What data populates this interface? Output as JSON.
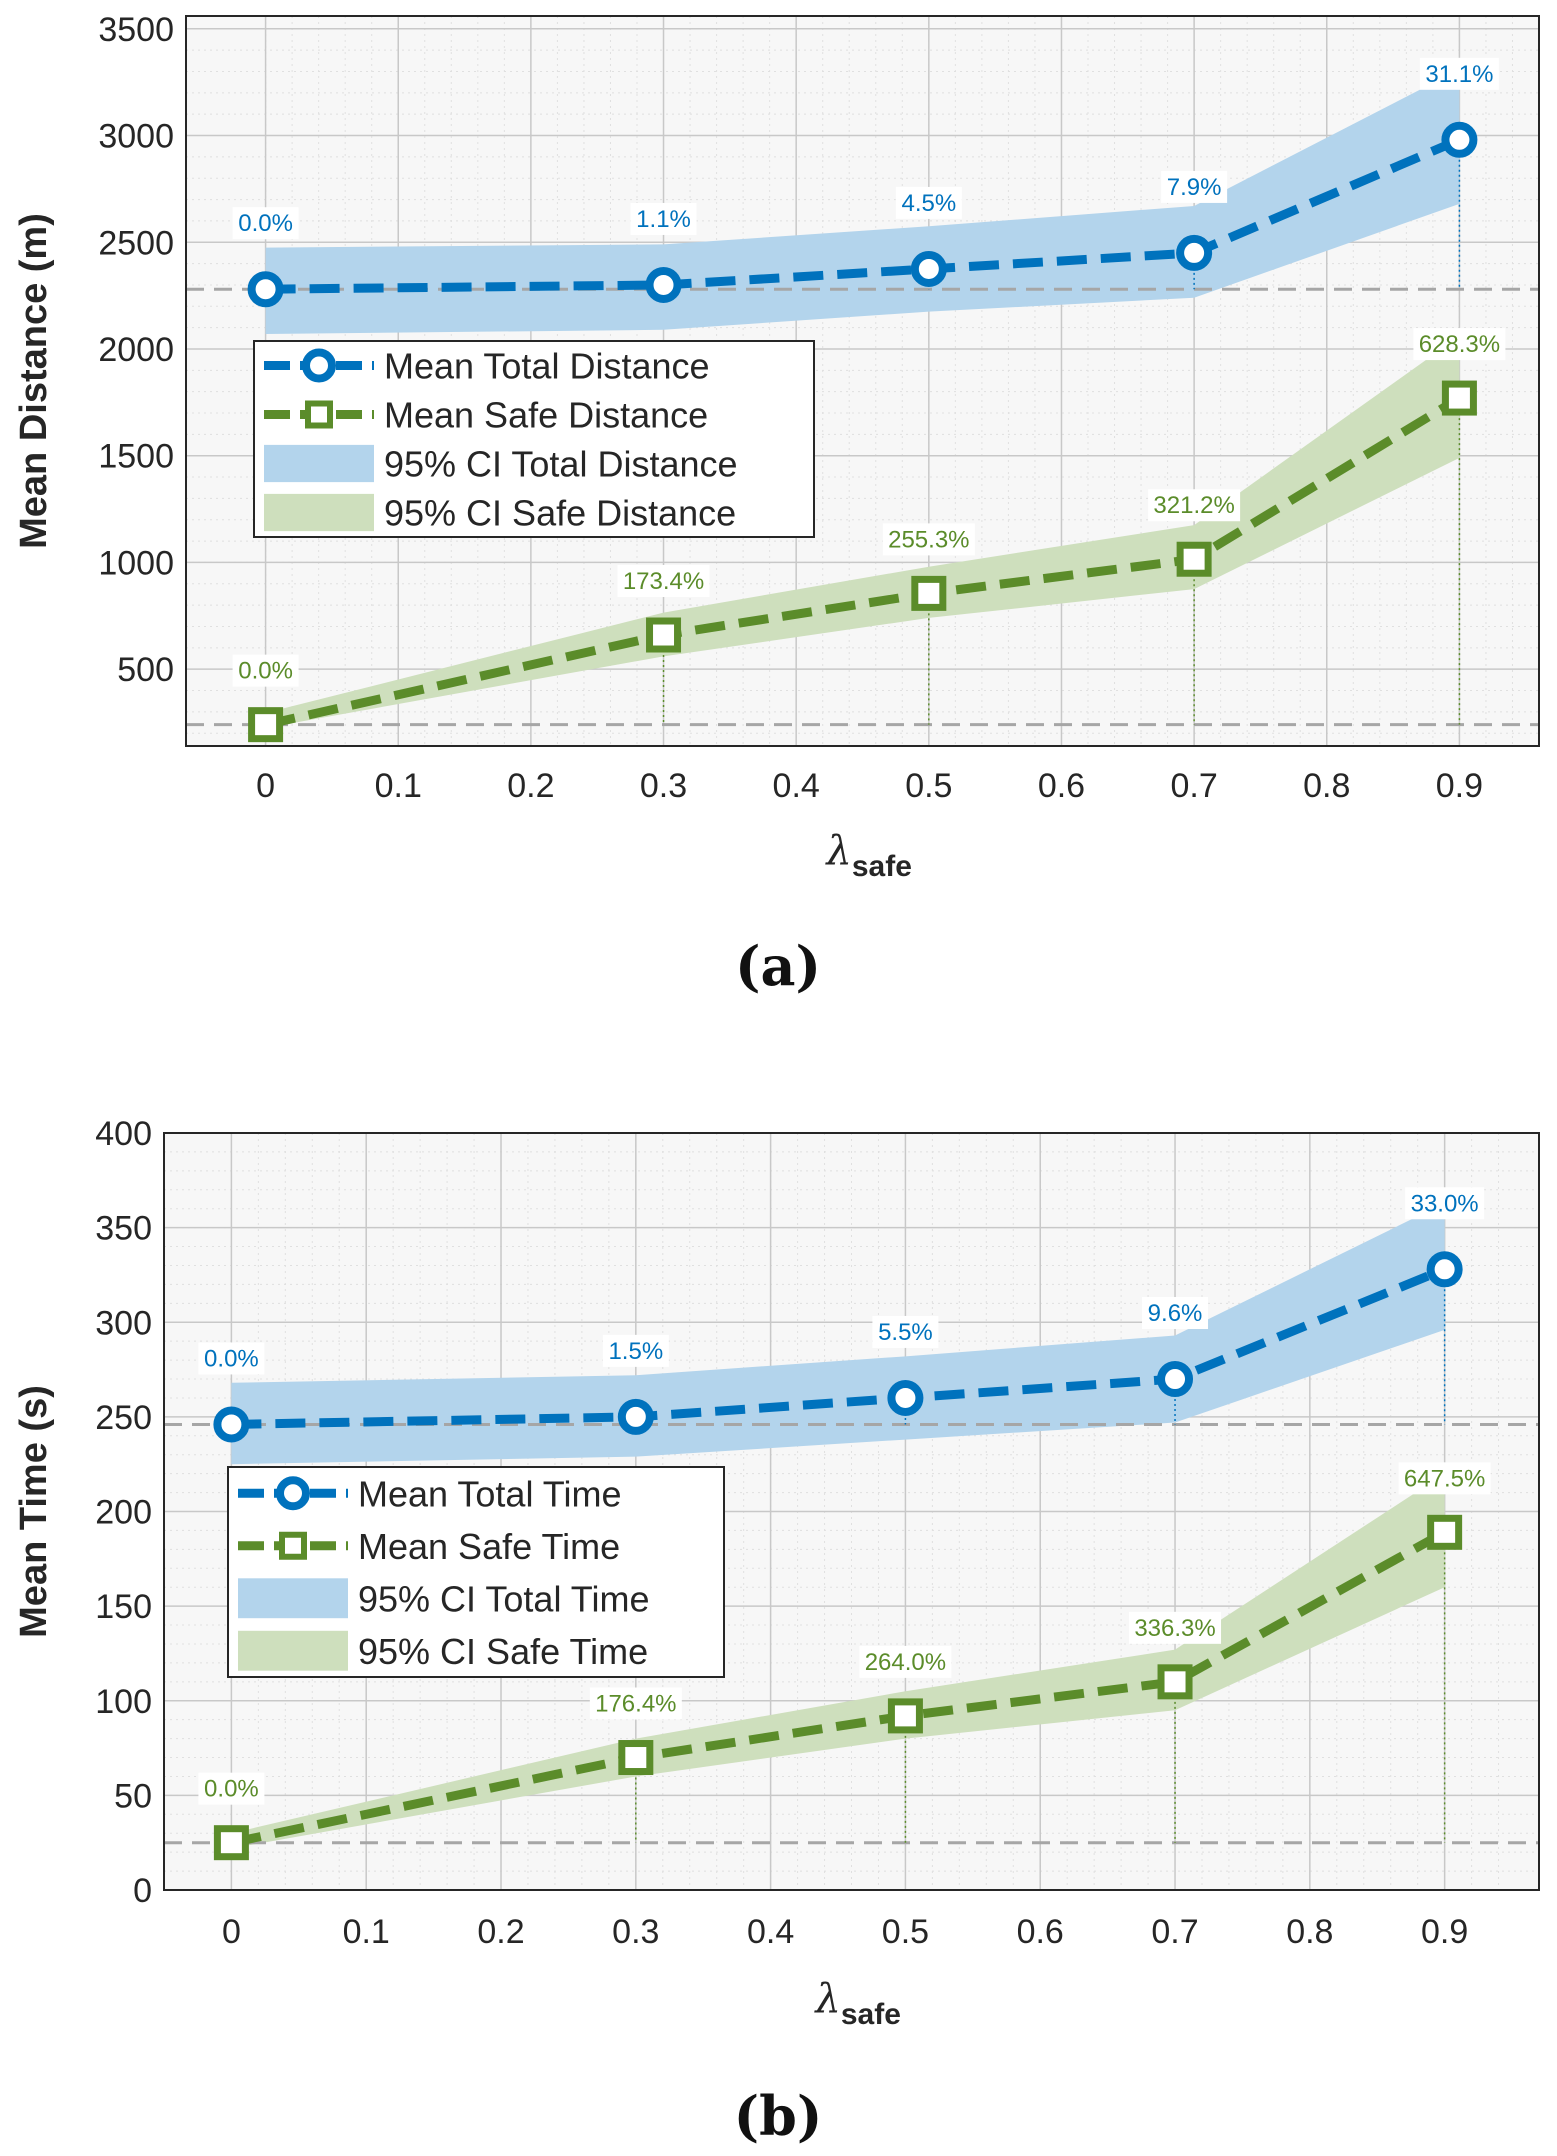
{
  "colors": {
    "total": "#0072bd",
    "safe": "#5b8c2a",
    "total_band": "#b3d4ec",
    "safe_band": "#cedfbd",
    "baseline": "#a6a6a6",
    "grid": "#c8c8c8"
  },
  "chart_data": [
    {
      "type": "line",
      "panel_label": "(a)",
      "xlabel": "λ",
      "xlabel_sub": "safe",
      "ylabel": "Mean Distance (m)",
      "ylim": [
        140,
        3560
      ],
      "xlim": [
        -0.06,
        0.96
      ],
      "x_ticks": [
        "0",
        "0.1",
        "0.2",
        "0.3",
        "0.4",
        "0.5",
        "0.6",
        "0.7",
        "0.8",
        "0.9"
      ],
      "y_ticks": [
        "500",
        "1000",
        "1500",
        "2000",
        "2500",
        "3000",
        "3500"
      ],
      "x": [
        0,
        0.3,
        0.5,
        0.7,
        0.9
      ],
      "series": [
        {
          "name": "Mean Total Distance",
          "marker": "circle",
          "values": [
            2280,
            2300,
            2375,
            2450,
            2980
          ],
          "ci_lower": [
            2070,
            2090,
            2175,
            2240,
            2680
          ],
          "ci_upper": [
            2475,
            2490,
            2575,
            2670,
            3310
          ],
          "annotations": [
            "0.0%",
            "1.1%",
            "4.5%",
            "7.9%",
            "31.1%"
          ]
        },
        {
          "name": "Mean Safe Distance",
          "marker": "square",
          "values": [
            240,
            660,
            855,
            1015,
            1770
          ],
          "ci_lower": [
            225,
            560,
            740,
            875,
            1490
          ],
          "ci_upper": [
            295,
            765,
            980,
            1175,
            2060
          ],
          "annotations": [
            "0.0%",
            "173.4%",
            "255.3%",
            "321.2%",
            "628.3%"
          ]
        }
      ],
      "ci_legend": [
        "95% CI Total Distance",
        "95% CI Safe Distance"
      ],
      "legend": [
        "Mean Total Distance",
        "Mean Safe Distance",
        "95% CI Total Distance",
        "95% CI Safe Distance"
      ]
    },
    {
      "type": "line",
      "panel_label": "(b)",
      "xlabel": "λ",
      "xlabel_sub": "safe",
      "ylabel": "Mean Time (s)",
      "ylim": [
        0,
        400
      ],
      "xlim": [
        -0.05,
        0.97
      ],
      "x_ticks": [
        "0",
        "0.1",
        "0.2",
        "0.3",
        "0.4",
        "0.5",
        "0.6",
        "0.7",
        "0.8",
        "0.9"
      ],
      "y_ticks": [
        "0",
        "50",
        "100",
        "150",
        "200",
        "250",
        "300",
        "350",
        "400"
      ],
      "x": [
        0,
        0.3,
        0.5,
        0.7,
        0.9
      ],
      "series": [
        {
          "name": "Mean Total Time",
          "marker": "circle",
          "values": [
            246,
            250,
            260,
            270,
            328
          ],
          "ci_lower": [
            225,
            229,
            238,
            247,
            296
          ],
          "ci_upper": [
            268,
            272,
            282,
            293,
            363
          ],
          "annotations": [
            "0.0%",
            "1.5%",
            "5.5%",
            "9.6%",
            "33.0%"
          ]
        },
        {
          "name": "Mean Safe Time",
          "marker": "square",
          "values": [
            25,
            70,
            92,
            110,
            189
          ],
          "ci_lower": [
            22,
            60,
            80,
            95,
            160
          ],
          "ci_upper": [
            30,
            80,
            105,
            127,
            220
          ],
          "annotations": [
            "0.0%",
            "176.4%",
            "264.0%",
            "336.3%",
            "647.5%"
          ]
        }
      ],
      "ci_legend": [
        "95% CI Total Time",
        "95% CI Safe Time"
      ],
      "legend": [
        "Mean Total Time",
        "Mean Safe Time",
        "95% CI Total Time",
        "95% CI Safe Time"
      ]
    }
  ]
}
